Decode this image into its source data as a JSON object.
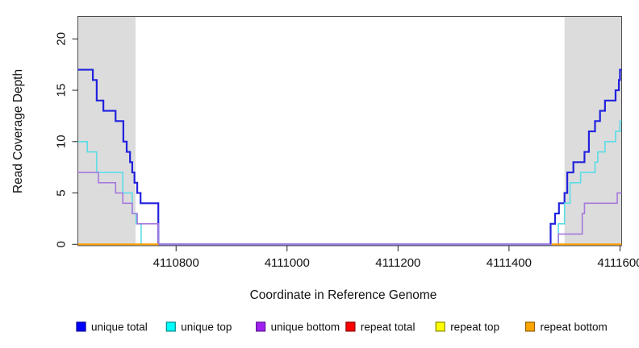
{
  "chart_data": {
    "type": "line",
    "subtype": "step-coverage",
    "title": "",
    "xlabel": "Coordinate in Reference Genome",
    "ylabel": "Read Coverage Depth",
    "xlim": [
      4110623,
      4111603
    ],
    "ylim": [
      0,
      22
    ],
    "grid": false,
    "x_ticks": [
      4110800,
      4111000,
      4111200,
      4111400,
      4111600
    ],
    "x_tick_labels": [
      "4110800",
      "4111000",
      "4111200",
      "4111400",
      "4111600"
    ],
    "y_ticks": [
      0,
      5,
      10,
      15,
      20
    ],
    "y_tick_labels": [
      "0",
      "5",
      "10",
      "15",
      "20"
    ],
    "shaded_repeat_regions": [
      [
        4110623,
        4110727
      ],
      [
        4111500,
        4111603
      ]
    ],
    "shade_color": "#dcdcdc",
    "series": [
      {
        "name": "unique total",
        "color": "#2121de",
        "width": 2.2,
        "steps": [
          [
            4110623,
            17
          ],
          [
            4110650,
            16
          ],
          [
            4110657,
            14
          ],
          [
            4110669,
            13
          ],
          [
            4110691,
            12
          ],
          [
            4110705,
            10
          ],
          [
            4110711,
            9
          ],
          [
            4110717,
            8
          ],
          [
            4110721,
            7
          ],
          [
            4110725,
            6
          ],
          [
            4110730,
            5
          ],
          [
            4110736,
            4
          ],
          [
            4110768,
            0
          ],
          [
            4111475,
            2
          ],
          [
            4111483,
            3
          ],
          [
            4111490,
            4
          ],
          [
            4111500,
            5
          ],
          [
            4111505,
            7
          ],
          [
            4111516,
            8
          ],
          [
            4111536,
            9
          ],
          [
            4111544,
            11
          ],
          [
            4111555,
            12
          ],
          [
            4111564,
            13
          ],
          [
            4111573,
            14
          ],
          [
            4111592,
            15
          ],
          [
            4111598,
            16
          ],
          [
            4111600,
            17
          ]
        ],
        "end": 4111603
      },
      {
        "name": "unique top",
        "color": "#5adde6",
        "width": 1.6,
        "steps": [
          [
            4110623,
            10
          ],
          [
            4110640,
            9
          ],
          [
            4110657,
            7
          ],
          [
            4110704,
            5
          ],
          [
            4110721,
            3
          ],
          [
            4110728,
            2
          ],
          [
            4110737,
            0
          ],
          [
            4111489,
            2
          ],
          [
            4111500,
            4
          ],
          [
            4111510,
            6
          ],
          [
            4111529,
            7
          ],
          [
            4111555,
            8
          ],
          [
            4111560,
            9
          ],
          [
            4111573,
            10
          ],
          [
            4111592,
            11
          ],
          [
            4111600,
            12
          ]
        ],
        "end": 4111603
      },
      {
        "name": "unique bottom",
        "color": "#a579dd",
        "width": 1.6,
        "steps": [
          [
            4110623,
            7
          ],
          [
            4110660,
            6
          ],
          [
            4110691,
            5
          ],
          [
            4110704,
            4
          ],
          [
            4110721,
            3
          ],
          [
            4110730,
            2
          ],
          [
            4110768,
            0
          ],
          [
            4111489,
            1
          ],
          [
            4111532,
            3
          ],
          [
            4111536,
            4
          ],
          [
            4111595,
            5
          ]
        ],
        "end": 4111603
      },
      {
        "name": "repeat total",
        "color": "#dd0000",
        "width": 1.6,
        "zero_segments": [
          [
            4110623,
            4110768
          ],
          [
            4111477,
            4111603
          ]
        ]
      },
      {
        "name": "repeat top",
        "color": "#ffff00",
        "width": 1.6,
        "zero_segments": [
          [
            4110623,
            4110768
          ],
          [
            4111477,
            4111603
          ]
        ]
      },
      {
        "name": "repeat bottom",
        "color": "#ff9d00",
        "width": 2.0,
        "zero_segments": [
          [
            4110623,
            4110768
          ],
          [
            4111477,
            4111603
          ]
        ]
      }
    ]
  },
  "legend": {
    "entries": [
      {
        "label": "unique total",
        "fill": "#0000ff",
        "border": "#00009a"
      },
      {
        "label": "unique top",
        "fill": "#00ffff",
        "border": "#008b8b"
      },
      {
        "label": "unique bottom",
        "fill": "#a020f0",
        "border": "#60159a"
      },
      {
        "label": "repeat total",
        "fill": "#ff0000",
        "border": "#8b0000"
      },
      {
        "label": "repeat top",
        "fill": "#ffff00",
        "border": "#8b8b00"
      },
      {
        "label": "repeat bottom",
        "fill": "#ffa500",
        "border": "#945e00"
      }
    ]
  },
  "axes_labels": {
    "x": "Coordinate in Reference Genome",
    "y": "Read Coverage Depth"
  }
}
